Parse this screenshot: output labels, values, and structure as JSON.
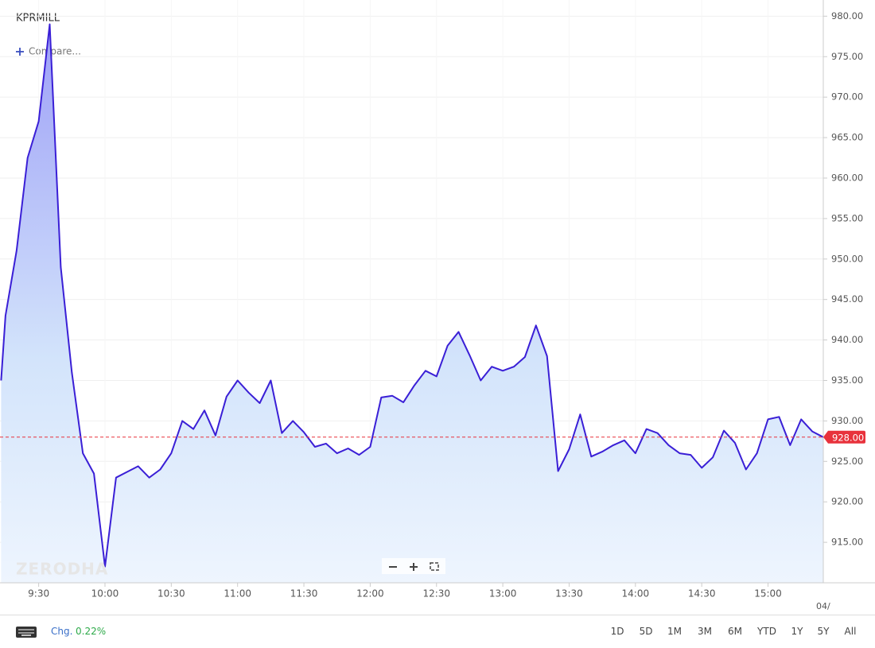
{
  "chart_data": {
    "type": "area",
    "title": "KPRMILL",
    "compare_label": "Compare...",
    "watermark": "ZERODHA",
    "x_axis_note": "04/",
    "x": [
      553,
      555,
      560,
      565,
      570,
      575,
      580,
      585,
      590,
      595,
      600,
      605,
      610,
      615,
      620,
      625,
      630,
      635,
      640,
      645,
      650,
      655,
      660,
      665,
      670,
      675,
      680,
      685,
      690,
      695,
      700,
      705,
      710,
      715,
      720,
      725,
      730,
      735,
      740,
      745,
      750,
      755,
      760,
      765,
      770,
      775,
      780,
      785,
      790,
      795,
      800,
      805,
      810,
      815,
      820,
      825,
      830,
      835,
      840,
      845,
      850,
      855,
      860,
      865,
      870,
      875,
      880,
      885,
      890,
      895,
      900,
      905,
      910,
      915,
      920,
      925
    ],
    "series": [
      {
        "name": "KPRMILL",
        "color": "#3a1fd6",
        "values": [
          935,
          943,
          951,
          962.5,
          967,
          979,
          949,
          936,
          926,
          923.5,
          912,
          923,
          923.7,
          924.4,
          923,
          924,
          926,
          930,
          929,
          931.3,
          928.2,
          933,
          935,
          933.5,
          932.2,
          935,
          928.5,
          930,
          928.6,
          926.8,
          927.2,
          926,
          926.6,
          925.8,
          926.8,
          932.9,
          933.1,
          932.3,
          934.4,
          936.2,
          935.5,
          939.3,
          941,
          938.1,
          935,
          936.7,
          936.2,
          936.7,
          937.9,
          941.8,
          938,
          923.8,
          926.5,
          930.8,
          925.6,
          926.2,
          927,
          927.6,
          926,
          929,
          928.5,
          927,
          926,
          925.8,
          924.2,
          925.5,
          928.8,
          927.3,
          924,
          926,
          930.2,
          930.5,
          927,
          930.2,
          928.7,
          928
        ]
      }
    ],
    "xlim": [
      552.5,
      925
    ],
    "ylim": [
      910,
      982
    ],
    "xticks": [
      {
        "value": 570,
        "label": "9:30"
      },
      {
        "value": 600,
        "label": "10:00"
      },
      {
        "value": 630,
        "label": "10:30"
      },
      {
        "value": 660,
        "label": "11:00"
      },
      {
        "value": 690,
        "label": "11:30"
      },
      {
        "value": 720,
        "label": "12:00"
      },
      {
        "value": 750,
        "label": "12:30"
      },
      {
        "value": 780,
        "label": "13:00"
      },
      {
        "value": 810,
        "label": "13:30"
      },
      {
        "value": 840,
        "label": "14:00"
      },
      {
        "value": 870,
        "label": "14:30"
      },
      {
        "value": 900,
        "label": "15:00"
      }
    ],
    "yticks": [
      {
        "value": 915,
        "label": "915.00"
      },
      {
        "value": 920,
        "label": "920.00"
      },
      {
        "value": 925,
        "label": "925.00"
      },
      {
        "value": 930,
        "label": "930.00"
      },
      {
        "value": 935,
        "label": "935.00"
      },
      {
        "value": 940,
        "label": "940.00"
      },
      {
        "value": 945,
        "label": "945.00"
      },
      {
        "value": 950,
        "label": "950.00"
      },
      {
        "value": 955,
        "label": "955.00"
      },
      {
        "value": 960,
        "label": "960.00"
      },
      {
        "value": 965,
        "label": "965.00"
      },
      {
        "value": 970,
        "label": "970.00"
      },
      {
        "value": 975,
        "label": "975.00"
      },
      {
        "value": 980,
        "label": "980.00"
      }
    ],
    "reference_line": {
      "value": 928,
      "label": "928.00",
      "color": "#e8323c"
    },
    "grid": true,
    "change": {
      "label": "Chg.",
      "value": "0.22%"
    },
    "ranges": [
      "1D",
      "5D",
      "1M",
      "3M",
      "6M",
      "YTD",
      "1Y",
      "5Y",
      "All"
    ]
  }
}
